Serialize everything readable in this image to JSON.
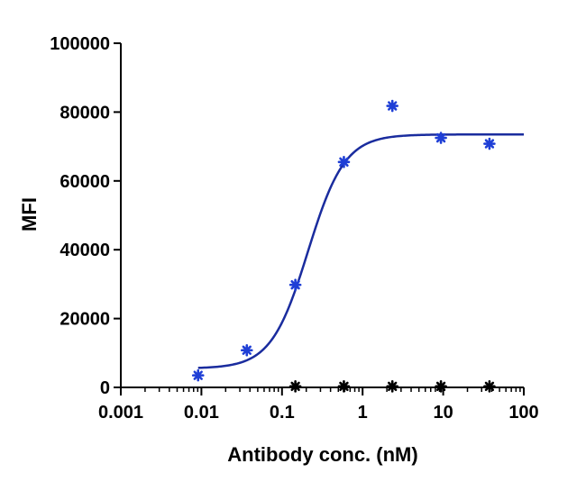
{
  "chart_data": {
    "type": "scatter",
    "xlabel": "Antibody conc. (nM)",
    "ylabel": "MFI",
    "x_scale": "log",
    "xlim": [
      0.001,
      100
    ],
    "ylim": [
      0,
      100000
    ],
    "x_tick_labels": [
      "0.001",
      "0.01",
      "0.1",
      "1",
      "10",
      "100"
    ],
    "x_tick_values": [
      0.001,
      0.01,
      0.1,
      1,
      10,
      100
    ],
    "y_tick_labels": [
      "0",
      "20000",
      "40000",
      "60000",
      "80000",
      "100000"
    ],
    "y_tick_values": [
      0,
      20000,
      40000,
      60000,
      80000,
      100000
    ],
    "grid": false,
    "legend": "none",
    "series": [
      {
        "marker": "asterisk",
        "color": "#1f3fd6",
        "x": [
          0.0091,
          0.0366,
          0.1465,
          0.586,
          2.34,
          9.375,
          37.5
        ],
        "y": [
          3500,
          10800,
          29800,
          65500,
          81800,
          72500,
          70800
        ]
      },
      {
        "marker": "asterisk",
        "color": "#000000",
        "x": [
          0.1465,
          0.586,
          2.34,
          9.375,
          37.5
        ],
        "y": [
          300,
          300,
          300,
          300,
          300
        ]
      }
    ],
    "fit_curve": {
      "type": "sigmoid",
      "color": "#1a2c9e",
      "x_range": [
        0.0091,
        100
      ],
      "y_values": {
        "bottom": 5500,
        "top": 73500,
        "ec50": 0.21,
        "hill": 1.9
      }
    }
  }
}
